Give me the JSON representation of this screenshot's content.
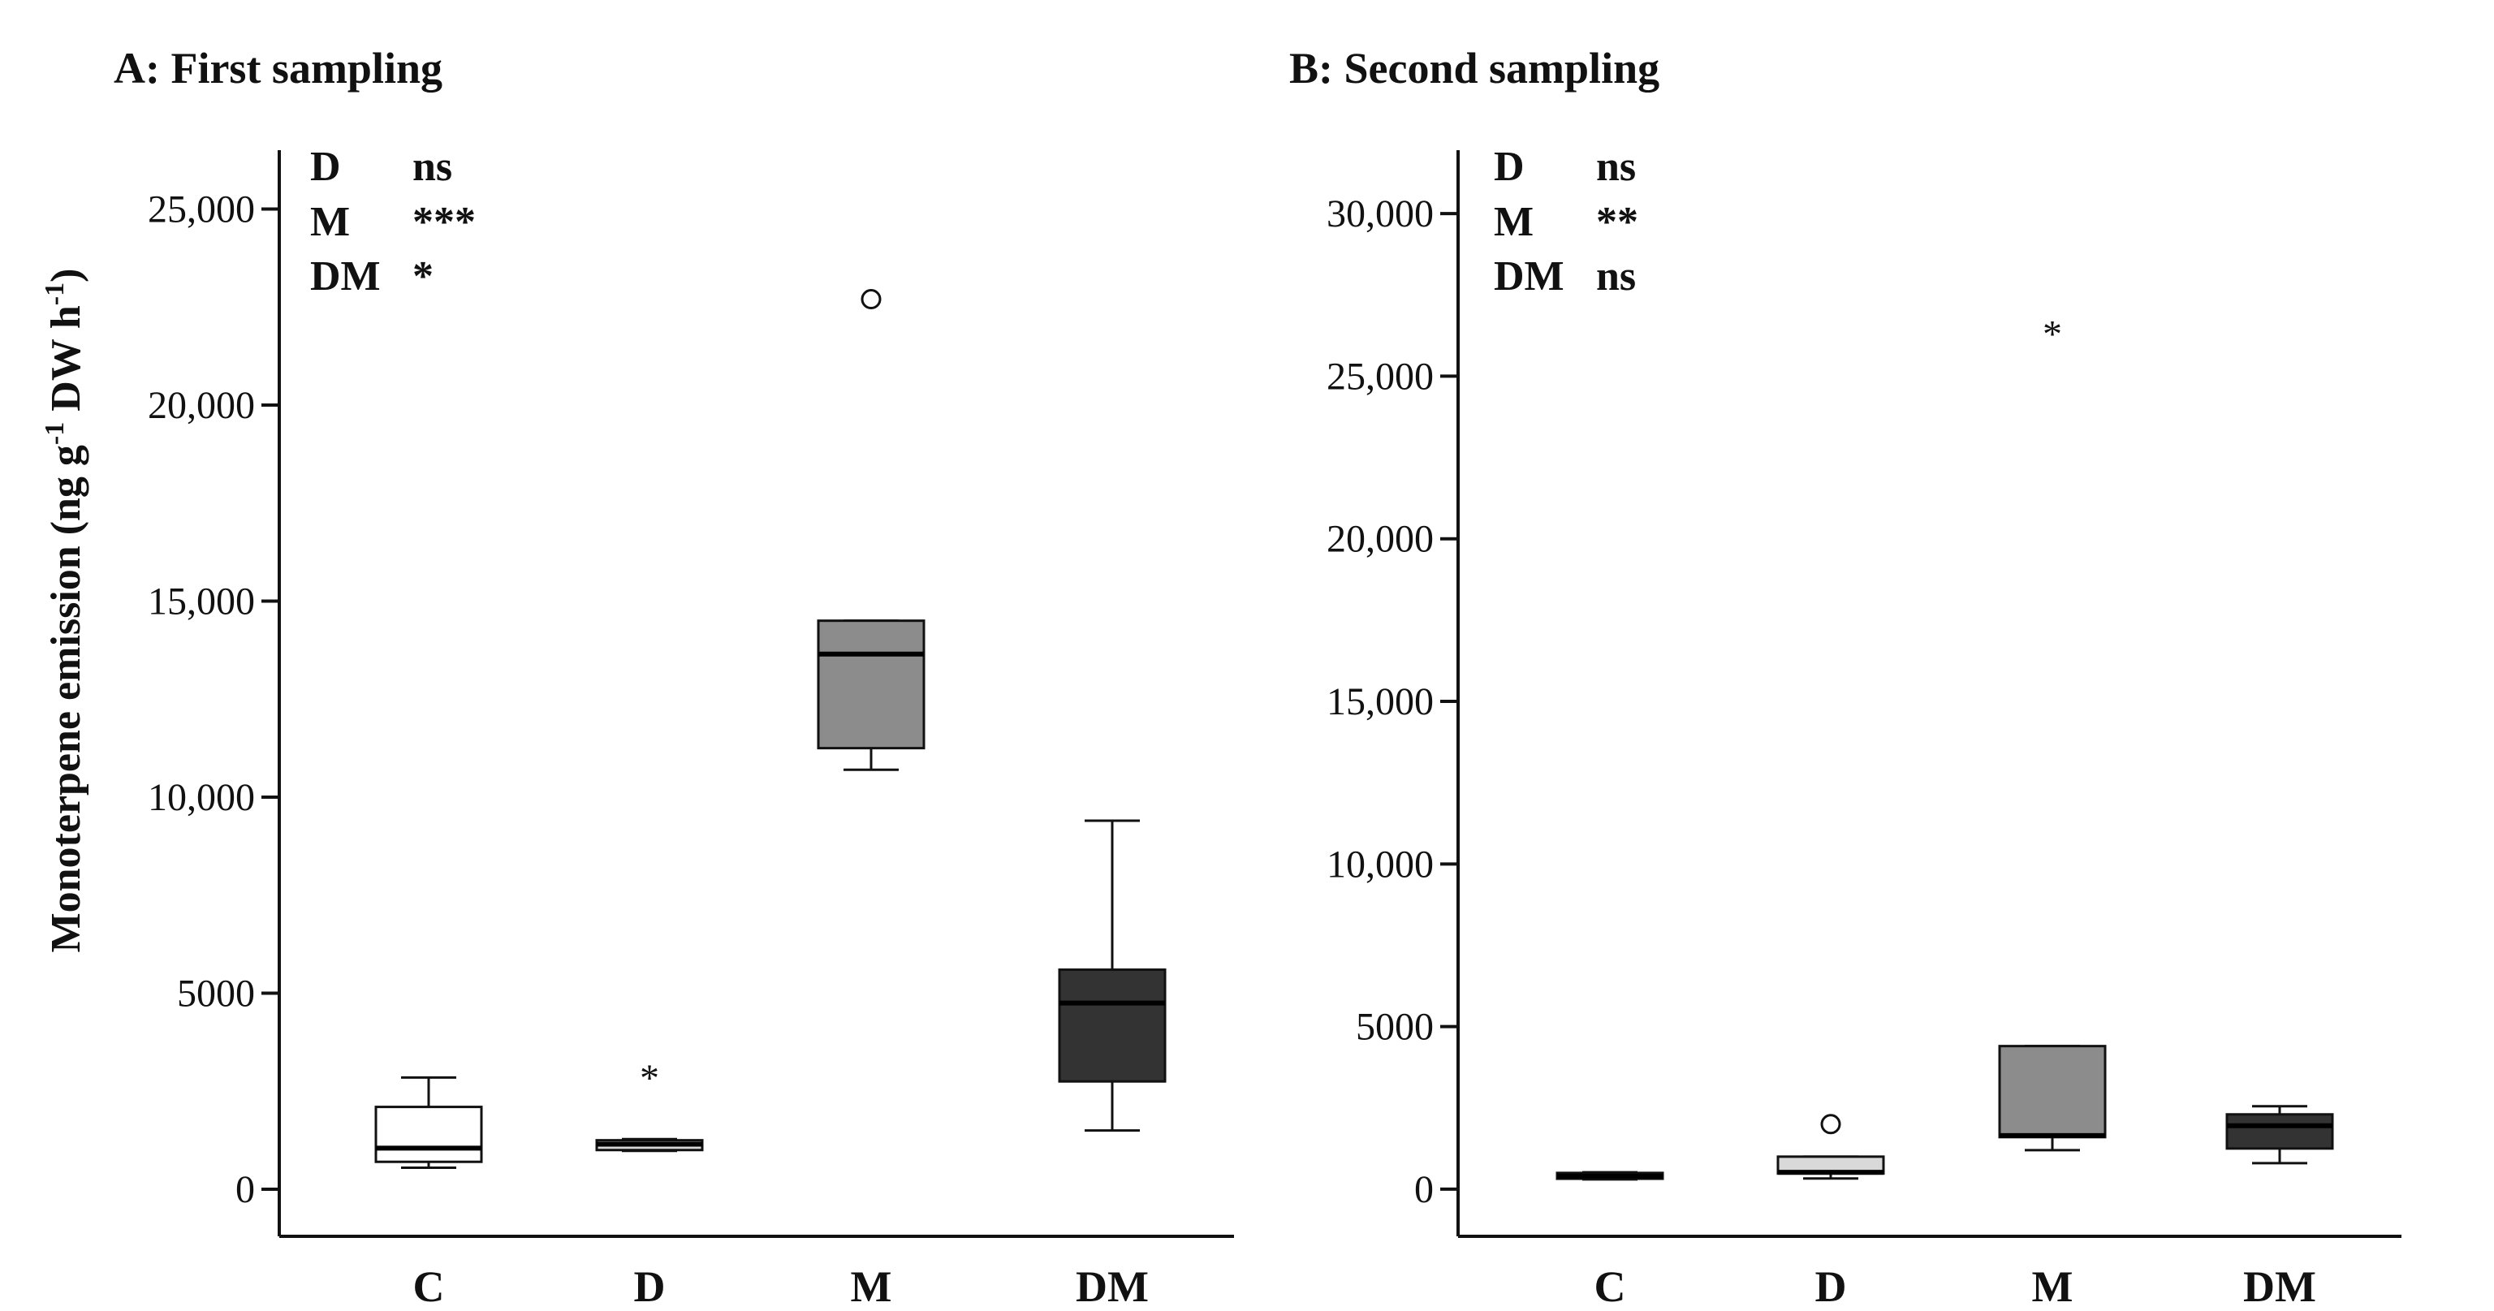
{
  "shared": {
    "ylabel_main": "Monoterpene emission (ng g",
    "ylabel_sup1": "-1",
    "ylabel_mid": " DW h",
    "ylabel_sup2": "-1",
    "ylabel_end": ")"
  },
  "chart_data": [
    {
      "type": "boxplot",
      "title": "A: First sampling",
      "xlabel": "",
      "ylabel": "Monoterpene emission (ng g-1 DW h-1)",
      "ylim": [
        -1200,
        26500
      ],
      "yticks": [
        0,
        5000,
        10000,
        15000,
        20000,
        25000
      ],
      "ytick_labels": [
        "0",
        "5000",
        "10,000",
        "15,000",
        "20,000",
        "25,000"
      ],
      "categories": [
        "C",
        "D",
        "M",
        "DM"
      ],
      "boxes": [
        {
          "category": "C",
          "color": "#ffffff",
          "whisker_low": 550,
          "q1": 700,
          "median": 1050,
          "q3": 2100,
          "whisker_high": 2850
        },
        {
          "category": "D",
          "color": "#d9d9d9",
          "whisker_low": 980,
          "q1": 1000,
          "median": 1150,
          "q3": 1250,
          "whisker_high": 1280
        },
        {
          "category": "M",
          "color": "#8c8c8c",
          "whisker_low": 10700,
          "q1": 11250,
          "median": 13650,
          "q3": 14500,
          "whisker_high": 14500
        },
        {
          "category": "DM",
          "color": "#333333",
          "whisker_low": 1500,
          "q1": 2750,
          "median": 4750,
          "q3": 5600,
          "whisker_high": 9400
        }
      ],
      "outliers": [
        {
          "category": "D",
          "value": 3000,
          "marker": "*"
        },
        {
          "category": "M",
          "value": 22700,
          "marker": "o"
        }
      ],
      "significance": [
        {
          "factor": "D",
          "mark": "ns"
        },
        {
          "factor": "M",
          "mark": "***"
        },
        {
          "factor": "DM",
          "mark": "*"
        }
      ]
    },
    {
      "type": "boxplot",
      "title": "B: Second sampling",
      "xlabel": "",
      "ylabel": "",
      "ylim": [
        -1450,
        31950
      ],
      "yticks": [
        0,
        5000,
        10000,
        15000,
        20000,
        25000,
        30000
      ],
      "ytick_labels": [
        "0",
        "5000",
        "10,000",
        "15,000",
        "20,000",
        "25,000",
        "30,000"
      ],
      "categories": [
        "C",
        "D",
        "M",
        "DM"
      ],
      "boxes": [
        {
          "category": "C",
          "color": "#333333",
          "whisker_low": 300,
          "q1": 320,
          "median": 400,
          "q3": 500,
          "whisker_high": 520
        },
        {
          "category": "D",
          "color": "#d9d9d9",
          "whisker_low": 330,
          "q1": 480,
          "median": 520,
          "q3": 1000,
          "whisker_high": 1000
        },
        {
          "category": "M",
          "color": "#8c8c8c",
          "whisker_low": 1200,
          "q1": 1600,
          "median": 1650,
          "q3": 4400,
          "whisker_high": 4400
        },
        {
          "category": "DM",
          "color": "#333333",
          "whisker_low": 800,
          "q1": 1250,
          "median": 1950,
          "q3": 2300,
          "whisker_high": 2550
        }
      ],
      "outliers": [
        {
          "category": "D",
          "value": 2000,
          "marker": "o"
        },
        {
          "category": "M",
          "value": 26500,
          "marker": "*"
        }
      ],
      "significance": [
        {
          "factor": "D",
          "mark": "ns"
        },
        {
          "factor": "M",
          "mark": "**"
        },
        {
          "factor": "DM",
          "mark": "ns"
        }
      ]
    }
  ]
}
